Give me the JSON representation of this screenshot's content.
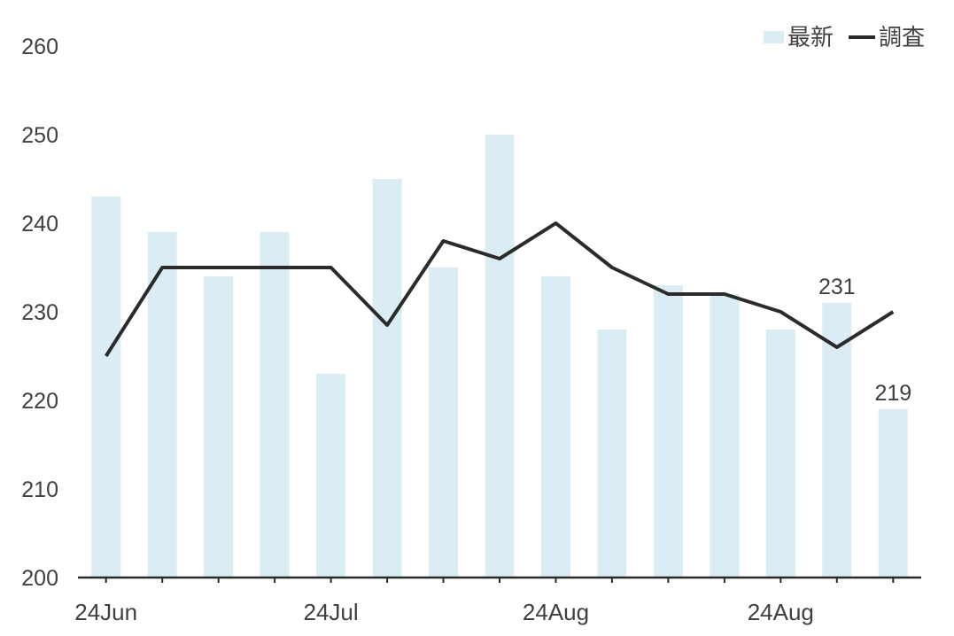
{
  "page": {
    "background": "#ffffff",
    "text_color": "#404040"
  },
  "legend": {
    "position": "top-right",
    "items": [
      {
        "label": "最新",
        "marker": "bar-swatch",
        "color": "#daecf4"
      },
      {
        "label": "調査",
        "marker": "line-swatch",
        "color": "#2b2b2b"
      }
    ]
  },
  "chart_data": {
    "type": "bar",
    "title": "",
    "xlabel": "",
    "ylabel": "",
    "n_points": 15,
    "x_tick_labels": [
      {
        "index": 0,
        "label": "24Jun"
      },
      {
        "index": 4,
        "label": "24Jul"
      },
      {
        "index": 8,
        "label": "24Aug"
      },
      {
        "index": 12,
        "label": "24Aug"
      }
    ],
    "yticks": [
      200,
      210,
      220,
      230,
      240,
      250,
      260
    ],
    "ylim": [
      200,
      260
    ],
    "grid": false,
    "legend_position": "top-right",
    "series": [
      {
        "name": "最新",
        "chart": "bar",
        "color": "#daecf4",
        "values": [
          243,
          239,
          234,
          239,
          223,
          245,
          235,
          250,
          234,
          228,
          233,
          232,
          228,
          231,
          219
        ]
      },
      {
        "name": "調査",
        "chart": "line",
        "color": "#2b2b2b",
        "values": [
          225,
          235,
          235,
          235,
          235,
          228.5,
          238,
          236,
          240,
          235,
          232,
          232,
          230,
          226,
          230
        ]
      }
    ],
    "annotations": [
      {
        "point_index": 13,
        "series": "最新",
        "text": "231"
      },
      {
        "point_index": 14,
        "series": "最新",
        "text": "219"
      }
    ],
    "axis_color": "#2b2b2b",
    "label_color": "#404040"
  }
}
